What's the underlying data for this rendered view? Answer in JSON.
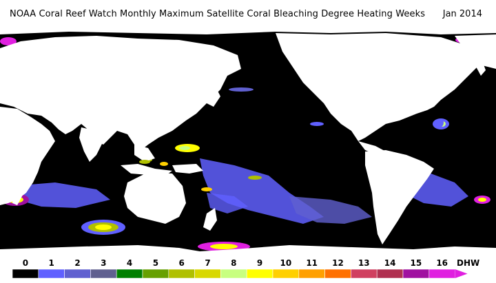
{
  "header": {
    "title": "NOAA Coral Reef Watch Monthly Maximum Satellite Coral Bleaching Degree Heating Weeks",
    "date": "Jan 2014"
  },
  "legend": {
    "unit": "DHW",
    "ticks": [
      "0",
      "1",
      "2",
      "3",
      "4",
      "5",
      "6",
      "7",
      "8",
      "9",
      "10",
      "11",
      "12",
      "13",
      "14",
      "15",
      "16"
    ],
    "colors": [
      "#000000",
      "#6060ff",
      "#6060d0",
      "#606090",
      "#008000",
      "#66a000",
      "#b0c000",
      "#d8d800",
      "#c8ff80",
      "#ffff00",
      "#ffd000",
      "#ffa000",
      "#ff7000",
      "#d04060",
      "#b03050",
      "#a010a0",
      "#e020e0"
    ]
  },
  "map": {
    "ocean_color": "#000000",
    "land_color": "#ffffff"
  }
}
